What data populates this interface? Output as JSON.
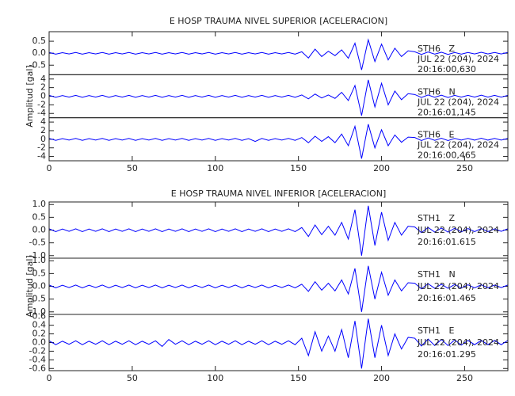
{
  "chart_data": [
    {
      "type": "line",
      "title": "E HOSP TRAUMA NIVEL SUPERIOR [ACELERACION]",
      "y_label": "Amplitud [gal]",
      "x": [
        0,
        4,
        8,
        12,
        16,
        20,
        24,
        28,
        32,
        36,
        40,
        44,
        48,
        52,
        56,
        60,
        64,
        68,
        72,
        76,
        80,
        84,
        88,
        92,
        96,
        100,
        104,
        108,
        112,
        116,
        120,
        124,
        128,
        132,
        136,
        140,
        144,
        148,
        152,
        156,
        160,
        164,
        168,
        172,
        176,
        180,
        184,
        188,
        192,
        196,
        200,
        204,
        208,
        212,
        216,
        220,
        224,
        228,
        232,
        236,
        240,
        244,
        248,
        252,
        256,
        260,
        264,
        268,
        272,
        276
      ],
      "xlim": [
        0,
        276
      ],
      "xticks": [
        0,
        50,
        100,
        150,
        200,
        250
      ],
      "panels": [
        {
          "label": "STH6   Z",
          "date": "JUL 22 (204), 2024",
          "time": "20:16:00,630",
          "color": "#0000ff",
          "ylim": [
            -0.9,
            0.9
          ],
          "yticks": [
            0.5,
            {
              "value": 0,
              "label": "0.0"
            },
            -0.5
          ],
          "values": [
            0.03,
            -0.04,
            0.02,
            -0.03,
            0.03,
            -0.04,
            0.02,
            -0.03,
            0.03,
            -0.04,
            0.02,
            -0.03,
            0.03,
            -0.04,
            0.02,
            -0.03,
            0.03,
            -0.04,
            0.02,
            -0.03,
            0.03,
            -0.04,
            0.02,
            -0.03,
            0.03,
            -0.04,
            0.02,
            -0.03,
            0.03,
            -0.04,
            0.02,
            -0.03,
            0.03,
            -0.04,
            0.02,
            -0.03,
            0.03,
            -0.04,
            0.06,
            -0.2,
            0.17,
            -0.14,
            0.08,
            -0.1,
            0.14,
            -0.21,
            0.42,
            -0.7,
            0.56,
            -0.35,
            0.38,
            -0.28,
            0.21,
            -0.14,
            0.1,
            0.06,
            -0.05,
            0.05,
            -0.04,
            0.04,
            -0.05,
            0.03,
            -0.04,
            0.03,
            -0.03,
            0.04,
            -0.03,
            0.03,
            -0.03,
            0.03
          ]
        },
        {
          "label": "STH6   N",
          "date": "JUL 22 (204), 2024",
          "time": "20:16:01,145",
          "color": "#0000ff",
          "ylim": [
            -5,
            5
          ],
          "yticks": [
            4,
            2,
            0,
            -2,
            -4
          ],
          "values": [
            0.2,
            -0.25,
            0.15,
            -0.2,
            0.2,
            -0.25,
            0.15,
            -0.2,
            0.2,
            -0.25,
            0.15,
            -0.2,
            0.2,
            -0.25,
            0.15,
            -0.2,
            0.2,
            -0.25,
            0.15,
            -0.2,
            0.2,
            -0.25,
            0.15,
            -0.2,
            0.2,
            -0.25,
            0.15,
            -0.2,
            0.2,
            -0.25,
            0.15,
            -0.2,
            0.2,
            -0.25,
            0.15,
            -0.2,
            0.2,
            -0.25,
            0.3,
            -0.6,
            0.5,
            -0.4,
            0.3,
            -0.5,
            0.9,
            -1.0,
            2.5,
            -4.5,
            3.8,
            -2.5,
            3.0,
            -2.0,
            1.2,
            -0.8,
            0.6,
            0.4,
            -0.3,
            0.3,
            -0.25,
            0.25,
            -0.3,
            0.2,
            -0.2,
            0.2,
            -0.2,
            0.25,
            -0.2,
            0.2,
            -0.2,
            0.2
          ]
        },
        {
          "label": "STH6   E",
          "date": "JUL 22 (204), 2024",
          "time": "20:16:00,465",
          "color": "#0000ff",
          "ylim": [
            -5,
            5
          ],
          "yticks": [
            4,
            2,
            0,
            -2,
            -4
          ],
          "values": [
            0.2,
            -0.25,
            0.15,
            -0.2,
            0.2,
            -0.25,
            0.15,
            -0.2,
            0.2,
            -0.25,
            0.15,
            -0.2,
            0.2,
            -0.25,
            0.15,
            -0.2,
            0.2,
            -0.25,
            0.15,
            -0.2,
            0.2,
            -0.25,
            0.15,
            -0.2,
            0.2,
            -0.25,
            0.15,
            -0.2,
            0.2,
            -0.25,
            0.15,
            -0.5,
            0.2,
            -0.25,
            0.15,
            -0.2,
            0.2,
            -0.25,
            0.4,
            -0.8,
            0.7,
            -0.5,
            0.6,
            -0.8,
            1.2,
            -1.5,
            3.0,
            -4.5,
            3.5,
            -2.0,
            2.2,
            -1.5,
            1.0,
            -0.7,
            0.5,
            0.4,
            -0.3,
            0.3,
            -0.25,
            0.25,
            -0.3,
            0.2,
            -0.2,
            0.2,
            -0.2,
            0.25,
            -0.2,
            0.2,
            -0.2,
            0.2
          ]
        }
      ]
    },
    {
      "type": "line",
      "title": "E HOSP TRAUMA NIVEL INFERIOR [ACELERACION]",
      "y_label": "Amplitud [gal]",
      "x": [
        0,
        4,
        8,
        12,
        16,
        20,
        24,
        28,
        32,
        36,
        40,
        44,
        48,
        52,
        56,
        60,
        64,
        68,
        72,
        76,
        80,
        84,
        88,
        92,
        96,
        100,
        104,
        108,
        112,
        116,
        120,
        124,
        128,
        132,
        136,
        140,
        144,
        148,
        152,
        156,
        160,
        164,
        168,
        172,
        176,
        180,
        184,
        188,
        192,
        196,
        200,
        204,
        208,
        212,
        216,
        220,
        224,
        228,
        232,
        236,
        240,
        244,
        248,
        252,
        256,
        260,
        264,
        268,
        272,
        276
      ],
      "xlim": [
        0,
        276
      ],
      "xticks": [
        0,
        50,
        100,
        150,
        200,
        250
      ],
      "panels": [
        {
          "label": "STH1   Z",
          "date": "JUL 22 (204), 2024",
          "time": "20:16:01.615",
          "color": "#0000ff",
          "ylim": [
            -1.1,
            1.1
          ],
          "yticks": [
            {
              "value": 1,
              "label": "1.0"
            },
            0.5,
            {
              "value": 0,
              "label": "0.0"
            },
            -0.5,
            {
              "value": -1,
              "label": "-1.0"
            }
          ],
          "values": [
            0.05,
            -0.06,
            0.04,
            -0.05,
            0.05,
            -0.06,
            0.04,
            -0.05,
            0.05,
            -0.06,
            0.04,
            -0.05,
            0.05,
            -0.06,
            0.04,
            -0.05,
            0.05,
            -0.06,
            0.04,
            -0.05,
            0.05,
            -0.06,
            0.04,
            -0.05,
            0.05,
            -0.06,
            0.04,
            -0.05,
            0.05,
            -0.06,
            0.04,
            -0.05,
            0.05,
            -0.06,
            0.04,
            -0.05,
            0.05,
            -0.06,
            0.1,
            -0.25,
            0.2,
            -0.18,
            0.15,
            -0.2,
            0.3,
            -0.35,
            0.8,
            -1.0,
            0.95,
            -0.6,
            0.7,
            -0.4,
            0.3,
            -0.2,
            0.15,
            0.12,
            -0.1,
            0.1,
            -0.08,
            0.08,
            -0.08,
            0.07,
            -0.07,
            0.06,
            -0.06,
            0.06,
            -0.06,
            0.05,
            -0.05,
            0.05
          ]
        },
        {
          "label": "STH1   N",
          "date": "JUL 22 (204), 2024",
          "time": "20:16:01.465",
          "color": "#0000ff",
          "ylim": [
            -1.1,
            1.1
          ],
          "yticks": [
            {
              "value": 1,
              "label": "1.0"
            },
            0.5,
            {
              "value": 0,
              "label": "0.0"
            },
            -0.5,
            {
              "value": -1,
              "label": "-1.0"
            }
          ],
          "values": [
            0.05,
            -0.06,
            0.04,
            -0.05,
            0.05,
            -0.06,
            0.04,
            -0.05,
            0.05,
            -0.06,
            0.04,
            -0.05,
            0.05,
            -0.06,
            0.04,
            -0.05,
            0.05,
            -0.06,
            0.04,
            -0.05,
            0.05,
            -0.06,
            0.04,
            -0.05,
            0.05,
            -0.06,
            0.04,
            -0.05,
            0.05,
            -0.06,
            0.04,
            -0.05,
            0.05,
            -0.06,
            0.04,
            -0.05,
            0.05,
            -0.06,
            0.08,
            -0.2,
            0.18,
            -0.15,
            0.12,
            -0.18,
            0.25,
            -0.3,
            0.7,
            -1.0,
            0.8,
            -0.5,
            0.55,
            -0.35,
            0.25,
            -0.18,
            0.14,
            0.12,
            -0.1,
            0.1,
            -0.08,
            0.08,
            -0.08,
            0.07,
            -0.07,
            0.06,
            -0.06,
            0.06,
            -0.06,
            0.05,
            -0.05,
            0.05
          ]
        },
        {
          "label": "STH1   E",
          "date": "JUL 22 (204), 2024",
          "time": "20:16:01.295",
          "color": "#0000ff",
          "ylim": [
            -0.65,
            0.65
          ],
          "yticks": [
            0.6,
            0.4,
            0.2,
            {
              "value": 0,
              "label": "0.0"
            },
            -0.2,
            -0.4,
            -0.6
          ],
          "values": [
            0.04,
            -0.05,
            0.03,
            -0.04,
            0.04,
            -0.05,
            0.03,
            -0.04,
            0.04,
            -0.05,
            0.03,
            -0.04,
            0.04,
            -0.05,
            0.03,
            -0.04,
            0.04,
            -0.09,
            0.07,
            -0.04,
            0.04,
            -0.05,
            0.03,
            -0.04,
            0.04,
            -0.05,
            0.03,
            -0.04,
            0.04,
            -0.05,
            0.03,
            -0.04,
            0.04,
            -0.05,
            0.03,
            -0.04,
            0.04,
            -0.05,
            0.1,
            -0.3,
            0.25,
            -0.2,
            0.15,
            -0.2,
            0.3,
            -0.35,
            0.5,
            -0.6,
            0.55,
            -0.35,
            0.4,
            -0.3,
            0.2,
            -0.15,
            0.12,
            0.1,
            -0.08,
            0.08,
            -0.07,
            0.07,
            -0.07,
            0.06,
            -0.06,
            0.05,
            -0.05,
            0.05,
            -0.05,
            0.05,
            -0.05,
            0.05
          ]
        }
      ]
    }
  ]
}
